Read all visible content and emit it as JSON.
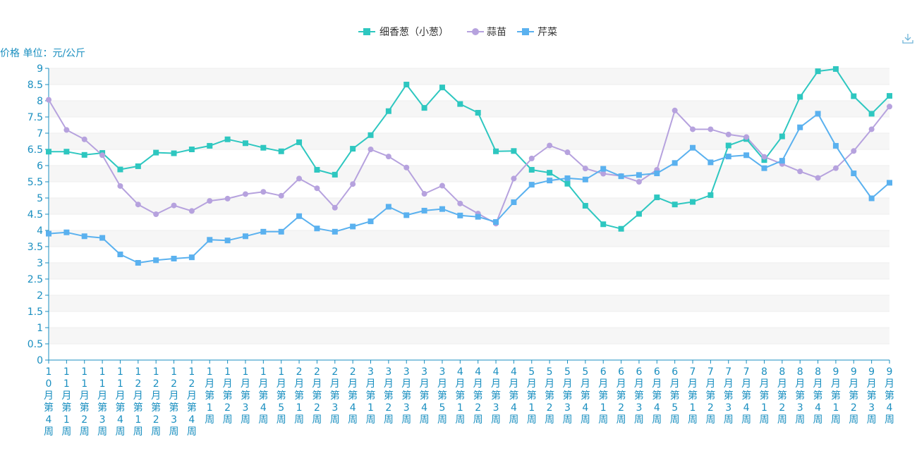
{
  "chart_data": {
    "type": "line",
    "y_unit_label": "价格 单位：元/公斤",
    "ylim": [
      0,
      9
    ],
    "y_ticks": [
      "0",
      "0.5",
      "1",
      "1.5",
      "2",
      "2.5",
      "3",
      "3.5",
      "4",
      "4.5",
      "5",
      "5.5",
      "6",
      "6.5",
      "7",
      "7.5",
      "8",
      "8.5",
      "9"
    ],
    "grid": true,
    "legend_position": "top-center",
    "categories": [
      "10月第4周",
      "11月第1周",
      "11月第2周",
      "11月第3周",
      "11月第4周",
      "12月第1周",
      "12月第2周",
      "12月第3周",
      "12月第4周",
      "1月第1周",
      "1月第2周",
      "1月第3周",
      "1月第4周",
      "1月第5周",
      "2月第1周",
      "2月第2周",
      "2月第3周",
      "2月第4周",
      "3月第1周",
      "3月第2周",
      "3月第3周",
      "3月第4周",
      "3月第5周",
      "4月第1周",
      "4月第2周",
      "4月第3周",
      "4月第4周",
      "5月第1周",
      "5月第2周",
      "5月第3周",
      "5月第4周",
      "6月第1周",
      "6月第2周",
      "6月第3周",
      "6月第4周",
      "6月第5周",
      "7月第1周",
      "7月第2周",
      "7月第3周",
      "7月第4周",
      "8月第1周",
      "8月第2周",
      "8月第3周",
      "8月第4周",
      "9月第1周",
      "9月第2周",
      "9月第3周",
      "9月第4周"
    ],
    "series": [
      {
        "name": "细香葱（小葱）",
        "color": "#2ec7c0",
        "marker": "square",
        "values": [
          6.43,
          6.43,
          6.33,
          6.39,
          5.88,
          5.98,
          6.4,
          6.38,
          6.5,
          6.61,
          6.81,
          6.69,
          6.55,
          6.44,
          6.72,
          5.87,
          5.72,
          6.52,
          6.94,
          7.68,
          8.5,
          7.78,
          8.41,
          7.9,
          7.63,
          6.44,
          6.45,
          5.87,
          5.78,
          5.44,
          4.76,
          4.19,
          4.05,
          4.51,
          5.02,
          4.8,
          4.88,
          5.09,
          6.62,
          6.82,
          6.17,
          6.9,
          8.12,
          8.91,
          8.98,
          8.14,
          7.6,
          8.15
        ]
      },
      {
        "name": "蒜苗",
        "color": "#b6a2de",
        "marker": "circle",
        "values": [
          8.03,
          7.1,
          6.81,
          6.32,
          5.37,
          4.8,
          4.5,
          4.77,
          4.6,
          4.91,
          4.98,
          5.12,
          5.19,
          5.07,
          5.6,
          5.3,
          4.7,
          5.43,
          6.5,
          6.28,
          5.94,
          5.13,
          5.38,
          4.83,
          4.52,
          4.21,
          5.6,
          6.22,
          6.62,
          6.41,
          5.91,
          5.75,
          5.68,
          5.5,
          5.87,
          7.7,
          7.12,
          7.12,
          6.96,
          6.88,
          6.27,
          6.05,
          5.82,
          5.62,
          5.92,
          6.45,
          7.12,
          7.82
        ]
      },
      {
        "name": "芹菜",
        "color": "#5ab1ef",
        "marker": "square",
        "values": [
          3.9,
          3.94,
          3.82,
          3.77,
          3.26,
          3.0,
          3.08,
          3.13,
          3.17,
          3.71,
          3.69,
          3.82,
          3.96,
          3.96,
          4.44,
          4.06,
          3.96,
          4.12,
          4.28,
          4.73,
          4.47,
          4.61,
          4.66,
          4.46,
          4.42,
          4.26,
          4.87,
          5.41,
          5.54,
          5.61,
          5.57,
          5.9,
          5.67,
          5.71,
          5.76,
          6.08,
          6.55,
          6.1,
          6.28,
          6.32,
          5.92,
          6.15,
          7.18,
          7.6,
          6.61,
          5.76,
          4.99,
          5.47
        ]
      }
    ]
  },
  "toolbar": {
    "download_icon": "download-icon"
  }
}
